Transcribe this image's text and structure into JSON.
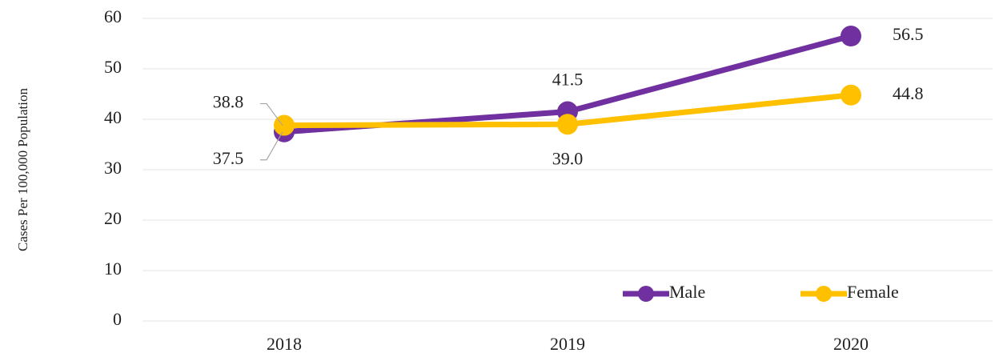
{
  "chart_data": {
    "type": "line",
    "y_axis_label": "Cases Per 100,000 Population",
    "categories": [
      "2018",
      "2019",
      "2020"
    ],
    "series": [
      {
        "name": "Male",
        "color": "#7030a0",
        "values": [
          37.5,
          41.5,
          56.5
        ],
        "value_labels": [
          "37.5",
          "41.5",
          "56.5"
        ]
      },
      {
        "name": "Female",
        "color": "#ffc000",
        "values": [
          38.8,
          39.0,
          44.8
        ],
        "value_labels": [
          "38.8",
          "39.0",
          "44.8"
        ]
      }
    ],
    "ylim": [
      0,
      60
    ],
    "yticks": [
      0,
      10,
      20,
      30,
      40,
      50,
      60
    ],
    "grid": true,
    "legend": "lower right"
  }
}
